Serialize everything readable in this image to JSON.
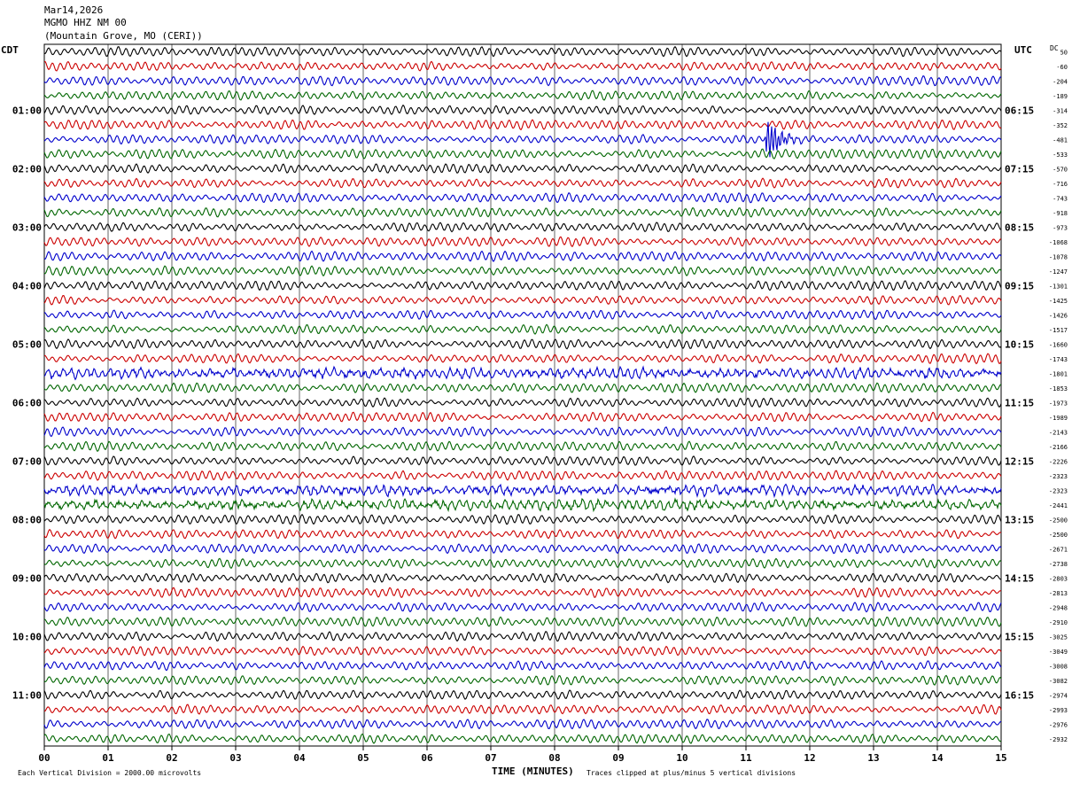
{
  "header": {
    "date": "Mar14,2026",
    "station": "MGMO HHZ NM 00",
    "location": "(Mountain Grove, MO (CERI))"
  },
  "left_axis_label": "CDT",
  "right_axis_label": "UTC",
  "dc_label": "DC",
  "footer": {
    "left_note": "Each Vertical Division = 2000.00 microvolts",
    "xlabel": "TIME (MINUTES)",
    "right_note": "Traces clipped at plus/minus 5 vertical divisions"
  },
  "colors": [
    "#000000",
    "#cc0000",
    "#0000cc",
    "#006600"
  ],
  "chart_data": {
    "type": "line",
    "xlabel": "TIME (MINUTES)",
    "xlim": [
      0,
      15
    ],
    "x_ticks": [
      "00",
      "01",
      "02",
      "03",
      "04",
      "05",
      "06",
      "07",
      "08",
      "09",
      "10",
      "11",
      "12",
      "13",
      "14",
      "15"
    ],
    "left_hour_labels": [
      "01:00",
      "02:00",
      "03:00",
      "04:00",
      "05:00",
      "06:00",
      "07:00",
      "08:00",
      "09:00",
      "10:00",
      "11:00"
    ],
    "right_hour_labels": [
      "06:15",
      "07:15",
      "08:15",
      "09:15",
      "10:15",
      "11:15",
      "12:15",
      "13:15",
      "14:15",
      "15:15",
      "16:15"
    ],
    "trace_count": 48,
    "dc_offsets": [
      50,
      -60,
      -204,
      -189,
      -314,
      -352,
      -481,
      -533,
      -570,
      -716,
      -743,
      -918,
      -973,
      -1068,
      -1078,
      -1247,
      -1301,
      -1425,
      -1426,
      -1517,
      -1660,
      -1743,
      -1801,
      -1853,
      -1973,
      -1989,
      -2143,
      -2166,
      -2226,
      -2323,
      -2323,
      -2441,
      -2500,
      -2500,
      -2671,
      -2738,
      -2803,
      -2813,
      -2948,
      -2910,
      -3025,
      -3049,
      -3008,
      -3082,
      -2974,
      -2993,
      -2976,
      -2932
    ],
    "events": [
      {
        "trace": 6,
        "minute": 11.4,
        "type": "local event (clipped burst)"
      }
    ],
    "noisy_traces": [
      22,
      30,
      31
    ]
  }
}
